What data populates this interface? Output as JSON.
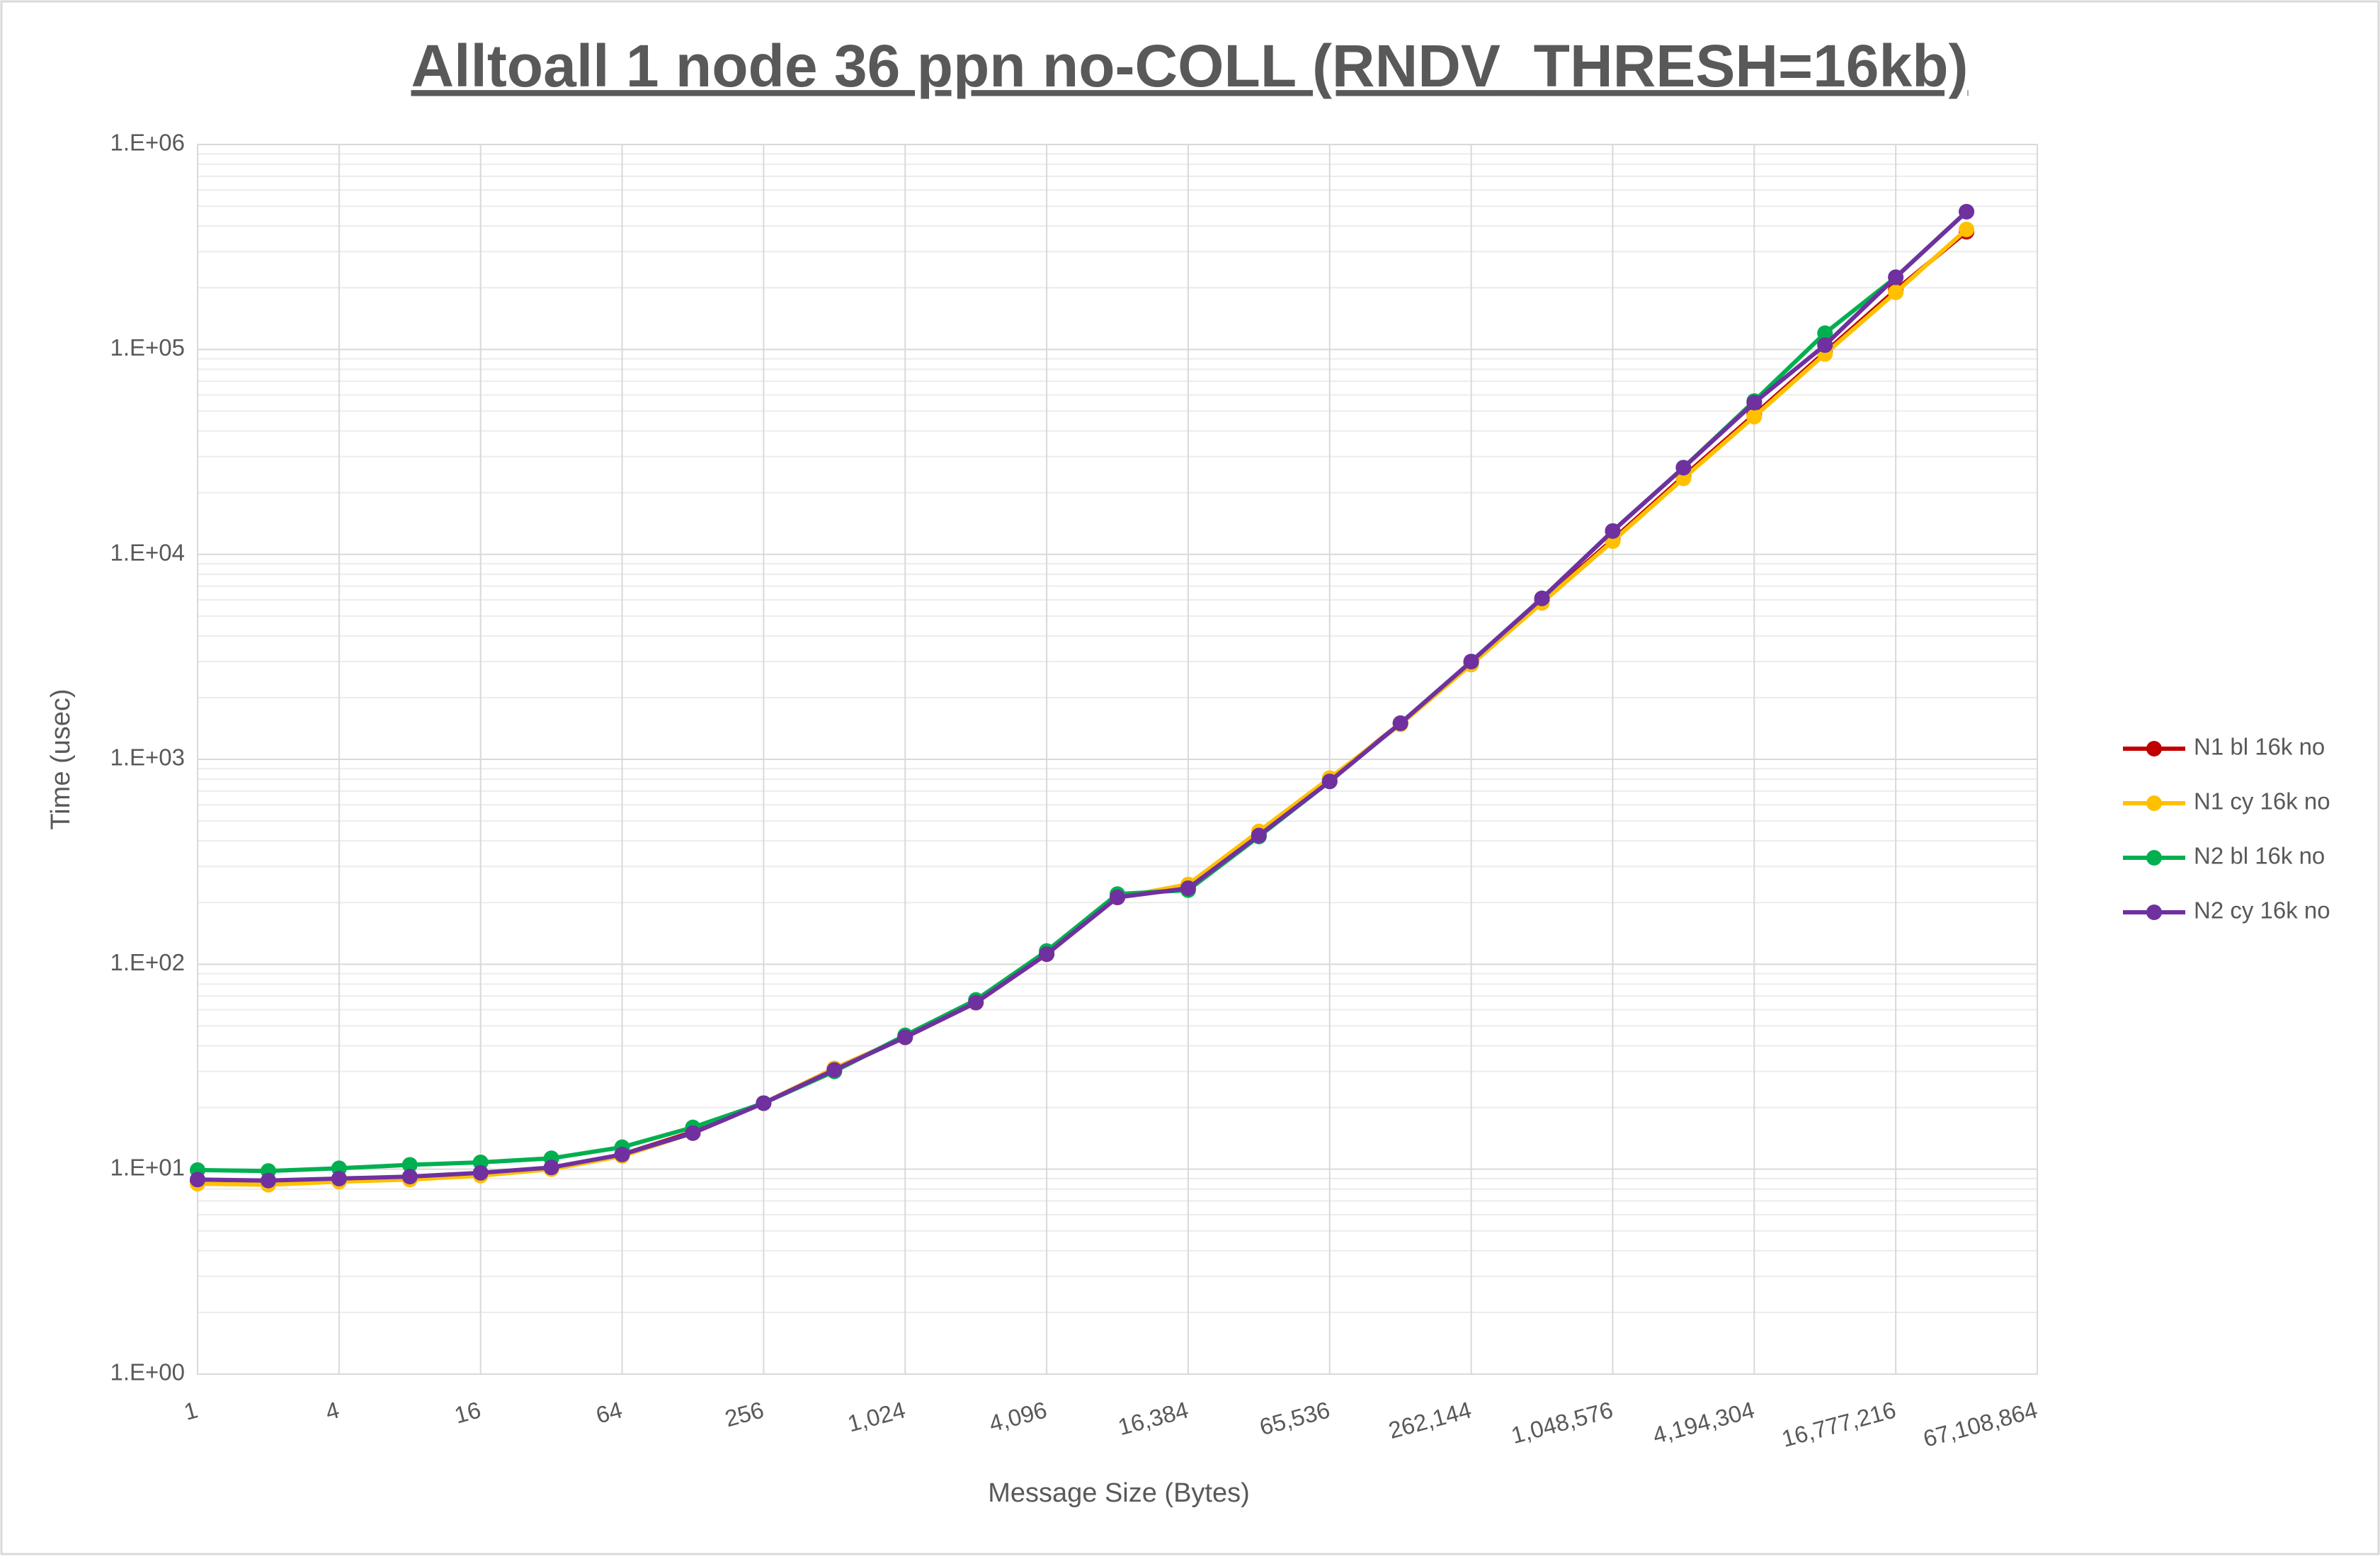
{
  "chart_data": {
    "type": "line",
    "title": "Alltoall 1 node 36 ppn no-COLL (RNDV_THRESH=16kb)",
    "x_label": "Message Size (Bytes)",
    "y_label": "Time (usec)",
    "x": [
      1,
      2,
      4,
      8,
      16,
      32,
      64,
      128,
      256,
      512,
      1024,
      2048,
      4096,
      8192,
      16384,
      32768,
      65536,
      131072,
      262144,
      524288,
      1048576,
      2097152,
      4194304,
      8388608,
      16777216,
      33554432
    ],
    "x_log_base": 2,
    "y_log_base": 10,
    "xlim": [
      1,
      67108864
    ],
    "xticks": [
      1,
      4,
      16,
      64,
      256,
      {
        "value": 1024,
        "label": "1,024"
      },
      {
        "value": 4096,
        "label": "4,096"
      },
      {
        "value": 16384,
        "label": "16,384"
      },
      {
        "value": 65536,
        "label": "65,536"
      },
      {
        "value": 262144,
        "label": "262,144"
      },
      {
        "value": 1048576,
        "label": "1,048,576"
      },
      {
        "value": 4194304,
        "label": "4,194,304"
      },
      {
        "value": 16777216,
        "label": "16,777,216"
      },
      {
        "value": 67108864,
        "label": "67,108,864"
      }
    ],
    "ylim": [
      1,
      1000000
    ],
    "yticks": [
      {
        "value": 1,
        "label": "1.E+00"
      },
      {
        "value": 10,
        "label": "1.E+01"
      },
      {
        "value": 100,
        "label": "1.E+02"
      },
      {
        "value": 1000,
        "label": "1.E+03"
      },
      {
        "value": 10000,
        "label": "1.E+04"
      },
      {
        "value": 100000,
        "label": "1.E+05"
      },
      {
        "value": 1000000,
        "label": "1.E+06"
      }
    ],
    "grid": true,
    "minor_grid": true,
    "legend": "right",
    "series": [
      {
        "name": "N1 bl 16k no",
        "color": "#c00000",
        "values": [
          8.7,
          8.6,
          8.9,
          9.1,
          9.5,
          10.1,
          11.8,
          15.2,
          21,
          31,
          44,
          65,
          112,
          212,
          242,
          440,
          800,
          1500,
          2950,
          5900,
          11800,
          24000,
          48000,
          97000,
          195000,
          375000
        ]
      },
      {
        "name": "N1 cy 16k no",
        "color": "#ffc000",
        "values": [
          8.5,
          8.4,
          8.7,
          8.9,
          9.3,
          10.0,
          11.6,
          15,
          21,
          31,
          44,
          65,
          112,
          212,
          245,
          445,
          810,
          1480,
          2900,
          5800,
          11600,
          23500,
          47000,
          95000,
          190000,
          385000
        ]
      },
      {
        "name": "N2 bl 16k no",
        "color": "#00b050",
        "values": [
          9.9,
          9.8,
          10.1,
          10.5,
          10.8,
          11.3,
          12.8,
          16,
          21,
          30,
          45,
          67,
          116,
          220,
          230,
          420,
          780,
          1500,
          3000,
          6100,
          13000,
          26500,
          56000,
          120000,
          225000,
          470000
        ]
      },
      {
        "name": "N2 cy 16k no",
        "color": "#7030a0",
        "values": [
          8.9,
          8.8,
          9.0,
          9.2,
          9.6,
          10.2,
          11.8,
          15,
          21,
          30.5,
          44,
          65,
          112,
          212,
          235,
          425,
          780,
          1500,
          3000,
          6100,
          13000,
          26500,
          55000,
          105000,
          225000,
          470000
        ]
      }
    ]
  }
}
